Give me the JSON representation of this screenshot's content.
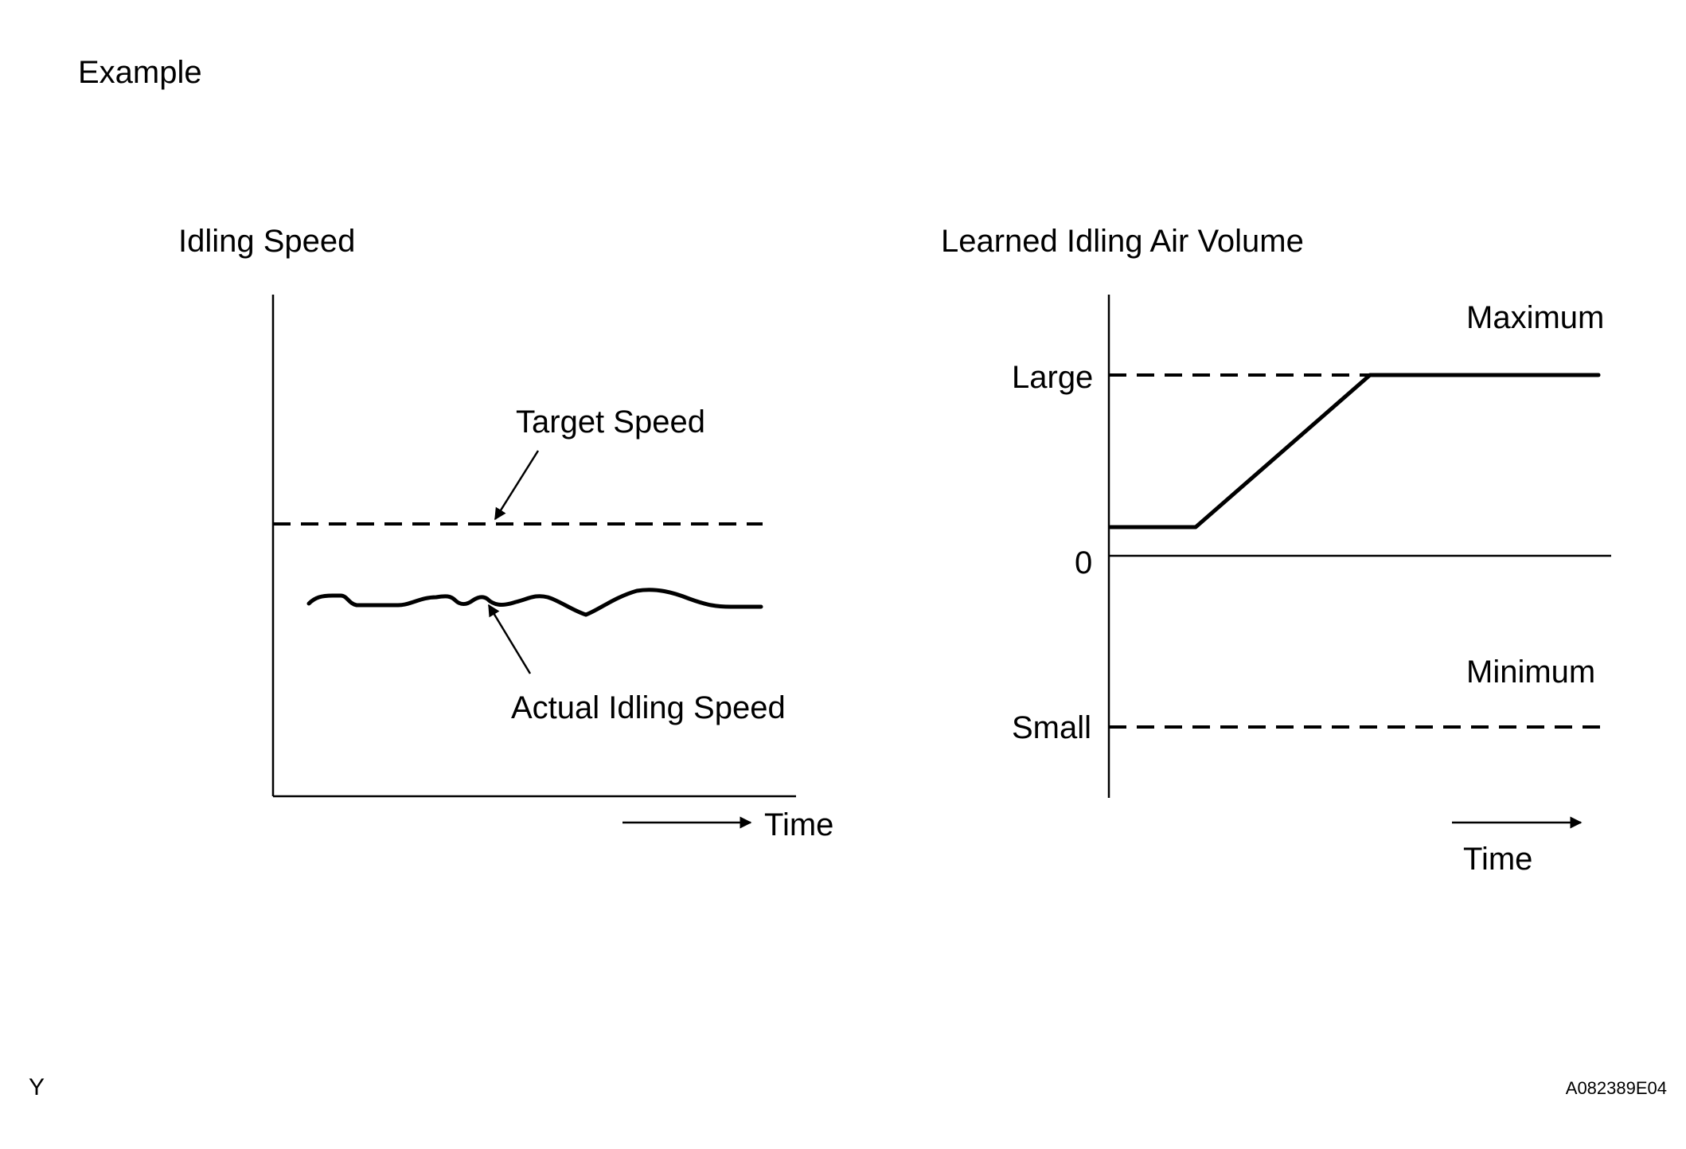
{
  "header": {
    "title": "Example"
  },
  "left_chart": {
    "title": "Idling Speed",
    "target_label": "Target Speed",
    "actual_label": "Actual Idling Speed",
    "time_label": "Time"
  },
  "right_chart": {
    "title": "Learned Idling Air Volume",
    "maximum_label": "Maximum",
    "minimum_label": "Minimum",
    "large_label": "Large",
    "zero_label": "0",
    "small_label": "Small",
    "time_label": "Time"
  },
  "footer": {
    "left_code": "Y",
    "right_code": "A082389E04"
  }
}
